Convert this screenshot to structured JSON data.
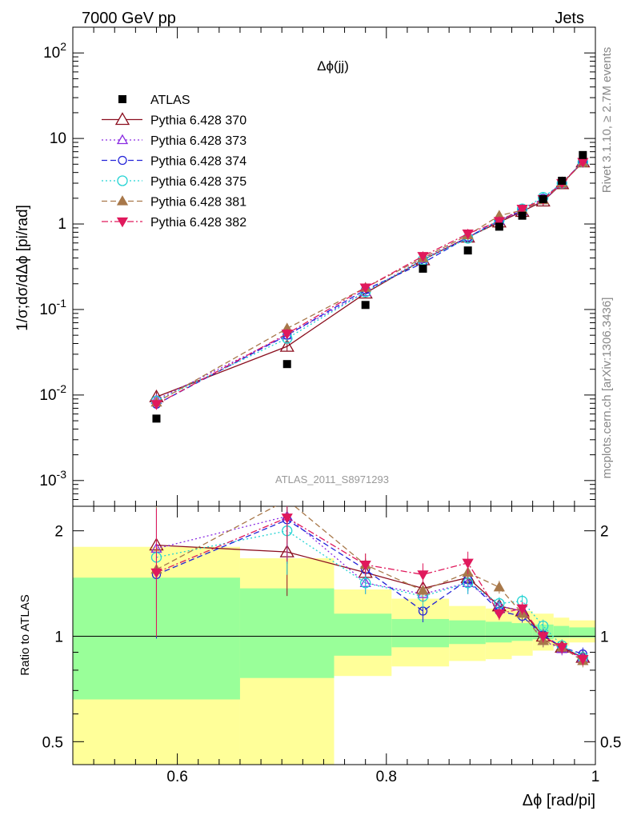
{
  "header": {
    "left": "7000 GeV pp",
    "right": "Jets"
  },
  "side_text": {
    "rivet": "Rivet 3.1.10, ≥ 2.7M events",
    "mcplots": "mcplots.cern.ch [arXiv:1306.3436]"
  },
  "colors": {
    "green_band": "#99ff99",
    "yellow_band": "#ffff99",
    "p370": "#8b0e1e",
    "p373": "#8a2be2",
    "p374": "#2323d8",
    "p375": "#22d3d3",
    "p381": "#a8784a",
    "p382": "#e0195c"
  },
  "chart_data": [
    {
      "type": "scatter",
      "panel": "main",
      "title": "Δϕ(jj)",
      "watermark": "ATLAS_2011_S8971293",
      "ylabel": "1/σ;dσ/dΔϕ [pi/rad]",
      "yscale": "log",
      "ylim": [
        0.0005,
        200
      ],
      "xlim": [
        0.5,
        1.0
      ],
      "y_tick_labels": [
        "10^-3",
        "10^-2",
        "10^-1",
        "1",
        "10",
        "10^2"
      ],
      "legend_position": "top-left",
      "x": [
        0.58,
        0.705,
        0.78,
        0.835,
        0.878,
        0.908,
        0.93,
        0.95,
        0.968,
        0.988
      ],
      "series": [
        {
          "name": "ATLAS",
          "marker": "square",
          "values": [
            0.0053,
            0.023,
            0.113,
            0.3,
            0.49,
            0.93,
            1.25,
            1.95,
            3.2,
            6.4
          ]
        },
        {
          "name": "Pythia 6.428 370",
          "marker": "triangle-open",
          "values": [
            0.0095,
            0.037,
            0.155,
            0.38,
            0.7,
            1.05,
            1.4,
            1.85,
            2.95,
            5.3
          ]
        },
        {
          "name": "Pythia 6.428 373",
          "marker": "triangle-open-small",
          "values": [
            0.0088,
            0.05,
            0.16,
            0.39,
            0.7,
            1.1,
            1.42,
            1.9,
            2.95,
            5.4
          ]
        },
        {
          "name": "Pythia 6.428 374",
          "marker": "circle-open",
          "values": [
            0.0078,
            0.05,
            0.17,
            0.35,
            0.7,
            1.1,
            1.43,
            2.0,
            2.98,
            5.4
          ]
        },
        {
          "name": "Pythia 6.428 375",
          "marker": "circle-open-large",
          "values": [
            0.0085,
            0.046,
            0.16,
            0.38,
            0.68,
            1.1,
            1.5,
            2.05,
            3.0,
            5.3
          ]
        },
        {
          "name": "Pythia 6.428 381",
          "marker": "triangle-filled",
          "values": [
            0.0082,
            0.06,
            0.18,
            0.4,
            0.74,
            1.25,
            1.45,
            1.9,
            2.98,
            5.2
          ]
        },
        {
          "name": "Pythia 6.428 382",
          "marker": "triangle-down-filled",
          "values": [
            0.0078,
            0.052,
            0.18,
            0.42,
            0.77,
            1.08,
            1.5,
            1.95,
            3.0,
            5.3
          ]
        }
      ]
    },
    {
      "type": "scatter",
      "panel": "ratio",
      "ylabel": "Ratio to ATLAS",
      "xlabel": "Δϕ [rad/pi]",
      "yscale": "log",
      "ylim": [
        0.43,
        2.35
      ],
      "xlim": [
        0.5,
        1.0
      ],
      "x_tick_labels": [
        "0.6",
        "0.8",
        "1"
      ],
      "y_tick_labels": [
        "0.5",
        "1",
        "2"
      ],
      "bands": {
        "edges": [
          0.5,
          0.66,
          0.75,
          0.805,
          0.86,
          0.895,
          0.92,
          0.94,
          0.96,
          0.975,
          1.0
        ],
        "green_low": [
          0.66,
          0.76,
          0.88,
          0.93,
          0.95,
          0.96,
          0.97,
          0.98,
          0.99,
          0.99
        ],
        "green_high": [
          1.47,
          1.37,
          1.16,
          1.12,
          1.11,
          1.1,
          1.09,
          1.08,
          1.07,
          1.06
        ],
        "yellow_low": [
          0.3,
          0.37,
          0.77,
          0.82,
          0.85,
          0.86,
          0.88,
          0.91,
          0.94,
          0.96
        ],
        "yellow_high": [
          1.8,
          1.67,
          1.36,
          1.28,
          1.22,
          1.2,
          1.18,
          1.16,
          1.13,
          1.11
        ]
      },
      "x": [
        0.58,
        0.705,
        0.78,
        0.835,
        0.878,
        0.908,
        0.93,
        0.95,
        0.968,
        0.988
      ],
      "series": [
        {
          "name": "Pythia 6.428 370",
          "values": [
            1.82,
            1.74,
            1.52,
            1.37,
            1.47,
            1.22,
            1.18,
            1.0,
            0.93,
            0.87
          ]
        },
        {
          "name": "Pythia 6.428 373",
          "values": [
            1.78,
            2.2,
            1.42,
            1.32,
            1.42,
            1.22,
            1.18,
            0.97,
            0.92,
            0.87
          ]
        },
        {
          "name": "Pythia 6.428 374",
          "values": [
            1.5,
            2.15,
            1.55,
            1.18,
            1.45,
            1.18,
            1.14,
            1.01,
            0.93,
            0.89
          ]
        },
        {
          "name": "Pythia 6.428 375",
          "values": [
            1.68,
            2.0,
            1.42,
            1.3,
            1.42,
            1.24,
            1.26,
            1.07,
            0.94,
            0.87
          ]
        },
        {
          "name": "Pythia 6.428 381",
          "values": [
            1.55,
            2.45,
            1.6,
            1.35,
            1.52,
            1.38,
            1.16,
            0.97,
            0.93,
            0.85
          ]
        },
        {
          "name": "Pythia 6.428 382",
          "values": [
            1.52,
            2.18,
            1.6,
            1.5,
            1.62,
            1.16,
            1.2,
            1.0,
            0.93,
            0.86
          ]
        }
      ]
    }
  ]
}
